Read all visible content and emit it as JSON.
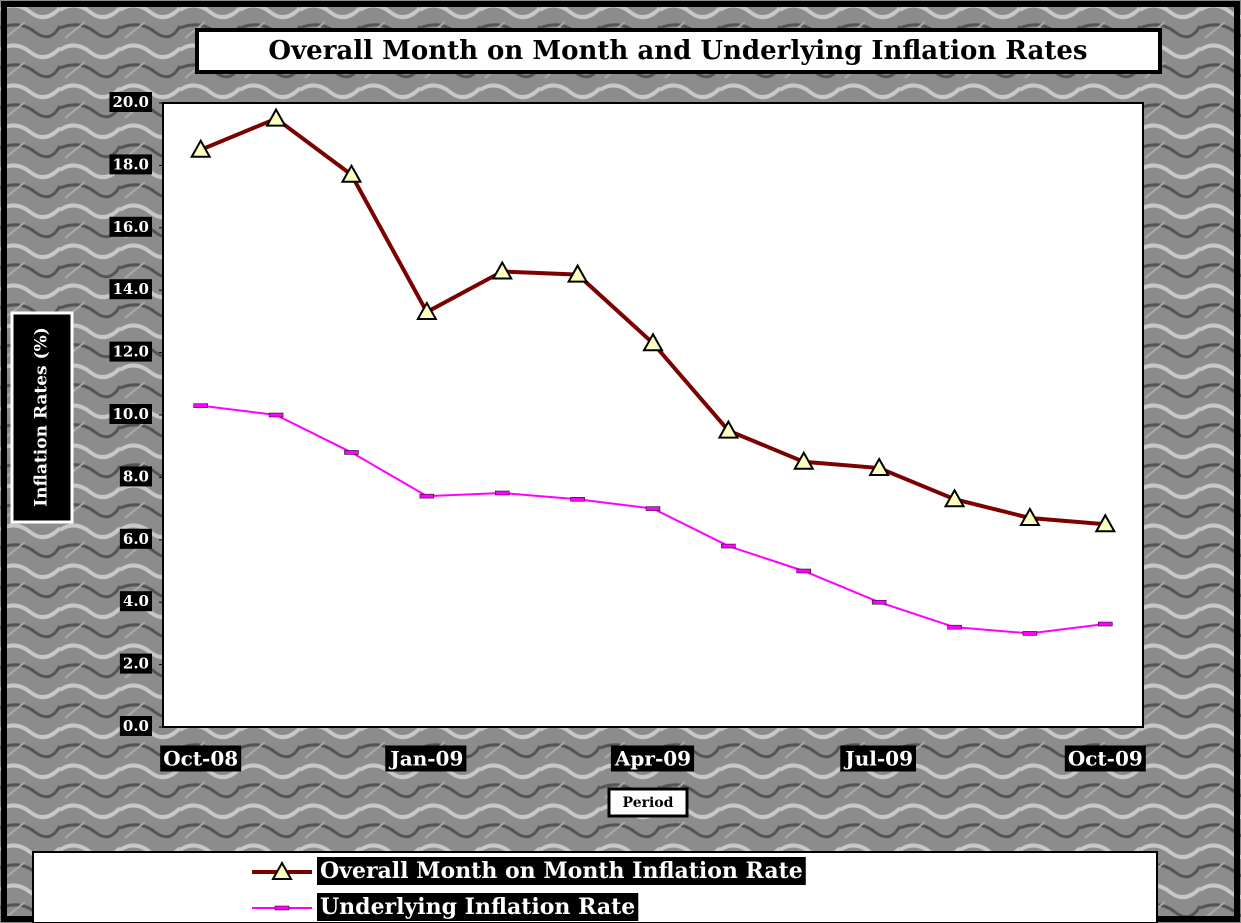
{
  "chart_data": {
    "type": "line",
    "title": "Overall Month on Month and Underlying Inflation Rates",
    "x_label": "Period",
    "y_label": "Inflation Rates (%)",
    "categories": [
      "Oct-08",
      null,
      null,
      "Jan-09",
      null,
      null,
      "Apr-09",
      null,
      null,
      "Jul-09",
      null,
      null,
      "Oct-09"
    ],
    "series": [
      {
        "name": "Overall Month on Month Inflation Rate",
        "color": "#7b0000",
        "marker": "triangle",
        "values": [
          18.5,
          19.5,
          17.7,
          13.3,
          14.6,
          14.5,
          12.3,
          9.5,
          8.5,
          8.3,
          7.3,
          6.7,
          6.5
        ]
      },
      {
        "name": "Underlying Inflation Rate",
        "color": "#ff00ff",
        "marker": "dash",
        "values": [
          10.3,
          10.0,
          8.8,
          7.4,
          7.5,
          7.3,
          7.0,
          5.8,
          5.0,
          4.0,
          3.2,
          3.0,
          3.3
        ]
      }
    ],
    "ylim": [
      0,
      20
    ],
    "yticks": [
      {
        "value": 0,
        "label": "0.0"
      },
      {
        "value": 2,
        "label": "2.0"
      },
      {
        "value": 4,
        "label": "4.0"
      },
      {
        "value": 6,
        "label": "6.0"
      },
      {
        "value": 8,
        "label": "8.0"
      },
      {
        "value": 10,
        "label": "10.0"
      },
      {
        "value": 12,
        "label": "12.0"
      },
      {
        "value": 14,
        "label": "14.0"
      },
      {
        "value": 16,
        "label": "16.0"
      },
      {
        "value": 18,
        "label": "18.0"
      },
      {
        "value": 20,
        "label": "20.0"
      }
    ],
    "grid": false,
    "legend": "bottom"
  }
}
